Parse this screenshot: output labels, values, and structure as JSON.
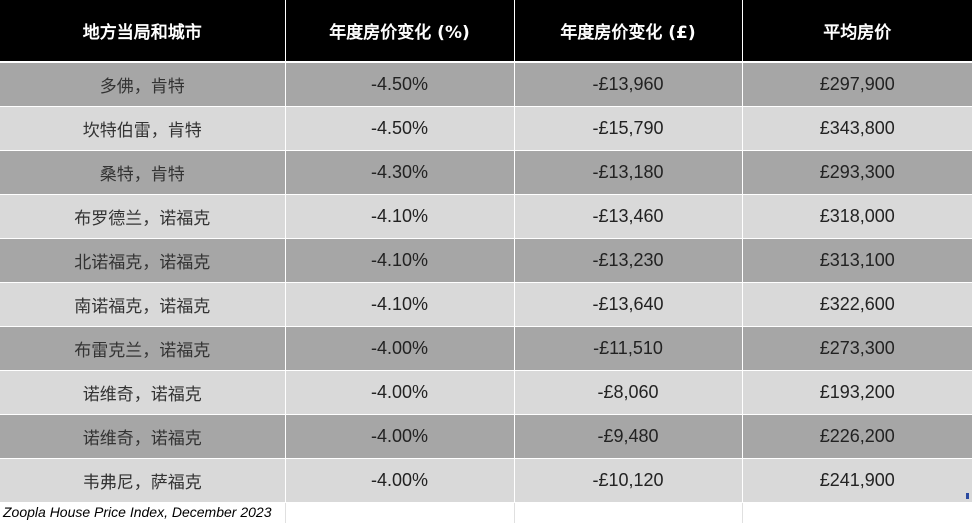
{
  "table": {
    "headers": [
      "地方当局和城市",
      "年度房价变化 (%)",
      "年度房价变化 (£)",
      "平均房价"
    ],
    "rows": [
      [
        "多佛，肯特",
        "-4.50%",
        "-£13,960",
        "£297,900"
      ],
      [
        "坎特伯雷，肯特",
        "-4.50%",
        "-£15,790",
        "£343,800"
      ],
      [
        "桑特，肯特",
        "-4.30%",
        "-£13,180",
        "£293,300"
      ],
      [
        "布罗德兰，诺福克",
        "-4.10%",
        "-£13,460",
        "£318,000"
      ],
      [
        "北诺福克，诺福克",
        "-4.10%",
        "-£13,230",
        "£313,100"
      ],
      [
        "南诺福克，诺福克",
        "-4.10%",
        "-£13,640",
        "£322,600"
      ],
      [
        "布雷克兰，诺福克",
        "-4.00%",
        "-£11,510",
        "£273,300"
      ],
      [
        "诺维奇，诺福克",
        "-4.00%",
        "-£8,060",
        "£193,200"
      ],
      [
        "诺维奇，诺福克",
        "-4.00%",
        "-£9,480",
        "£226,200"
      ],
      [
        "韦弗尼，萨福克",
        "-4.00%",
        "-£10,120",
        "£241,900"
      ]
    ]
  },
  "source_note": "Zoopla House Price Index, December 2023",
  "colors": {
    "header_bg": "#000000",
    "header_text": "#ffffff",
    "row_dark": "#a6a6a6",
    "row_light": "#d9d9d9"
  }
}
